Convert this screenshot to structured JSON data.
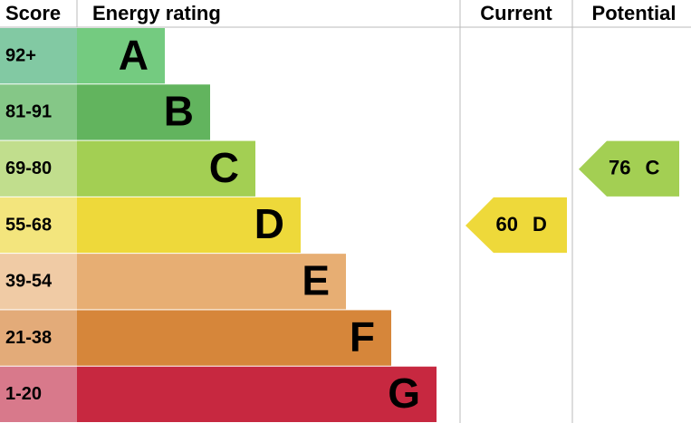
{
  "headers": {
    "score": "Score",
    "rating": "Energy rating",
    "current": "Current",
    "potential": "Potential"
  },
  "bands": [
    {
      "score": "92+",
      "letter": "A",
      "color": "#74cb80",
      "score_color": "#82c9a3"
    },
    {
      "score": "81-91",
      "letter": "B",
      "color": "#62b45e",
      "score_color": "#85c787"
    },
    {
      "score": "69-80",
      "letter": "C",
      "color": "#a3cf53",
      "score_color": "#c1de8d"
    },
    {
      "score": "55-68",
      "letter": "D",
      "color": "#eed93a",
      "score_color": "#f3e57d"
    },
    {
      "score": "39-54",
      "letter": "E",
      "color": "#e7ae73",
      "score_color": "#f0cba5"
    },
    {
      "score": "21-38",
      "letter": "F",
      "color": "#d6863a",
      "score_color": "#e3ab79"
    },
    {
      "score": "1-20",
      "letter": "G",
      "color": "#c72840",
      "score_color": "#d8798b"
    }
  ],
  "current": {
    "value": 60,
    "letter": "D"
  },
  "potential": {
    "value": 76,
    "letter": "C"
  }
}
